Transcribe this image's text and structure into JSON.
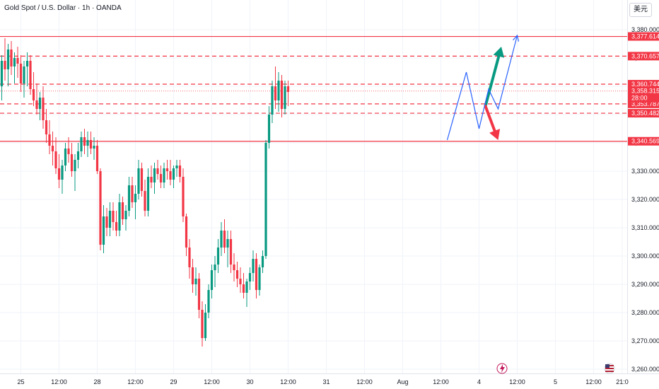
{
  "header": {
    "title": "Gold Spot / U.S. Dollar · 1h · OANDA",
    "currency_button": "美元"
  },
  "chart_data": {
    "type": "candlestick",
    "title": "Gold Spot / U.S. Dollar · 1h · OANDA",
    "y_ticks": [
      3380,
      3370,
      3360,
      3350,
      3340,
      3330,
      3320,
      3310,
      3300,
      3290,
      3280,
      3270,
      3260
    ],
    "y_tick_labels": [
      "3,380.000",
      "3,370.000",
      "3,360.000",
      "3,350.000",
      "3,340.000",
      "3,330.000",
      "3,320.000",
      "3,310.000",
      "3,300.000",
      "3,290.000",
      "3,280.000",
      "3,270.000",
      "3,260.000"
    ],
    "ylim": [
      3257,
      3384
    ],
    "x_ticks": [
      {
        "label": "25",
        "t": 6
      },
      {
        "label": "12:00",
        "t": 18
      },
      {
        "label": "28",
        "t": 30
      },
      {
        "label": "12:00",
        "t": 42
      },
      {
        "label": "29",
        "t": 54
      },
      {
        "label": "12:00",
        "t": 66
      },
      {
        "label": "30",
        "t": 78
      },
      {
        "label": "12:00",
        "t": 90
      },
      {
        "label": "31",
        "t": 102
      },
      {
        "label": "12:00",
        "t": 114
      },
      {
        "label": "Aug",
        "t": 126
      },
      {
        "label": "12:00",
        "t": 138
      },
      {
        "label": "4",
        "t": 150
      },
      {
        "label": "12:00",
        "t": 162
      },
      {
        "label": "5",
        "t": 174
      },
      {
        "label": "12:00",
        "t": 186
      },
      {
        "label": "21:0",
        "t": 195
      }
    ],
    "levels": [
      {
        "value": 3377.614,
        "label": "3,377.614",
        "style": "solid",
        "color": "#f23645"
      },
      {
        "value": 3370.657,
        "label": "3,370.657",
        "style": "dashed",
        "color": "#f23645"
      },
      {
        "value": 3360.744,
        "label": "3,360.744",
        "style": "dashed",
        "color": "#f23645"
      },
      {
        "value": 3353.787,
        "label": "3,353.787",
        "style": "dashed",
        "color": "#f23645"
      },
      {
        "value": 3350.482,
        "label": "3,350.482",
        "style": "dashed",
        "color": "#f23645"
      },
      {
        "value": 3340.569,
        "label": "3,340.569",
        "style": "solid",
        "color": "#f23645"
      }
    ],
    "current_price": {
      "value": 3358.315,
      "label": "3,358.315",
      "countdown": "28:00",
      "color": "#f23645"
    },
    "up_color": "#089981",
    "down_color": "#f23645",
    "candles": [
      [
        3360,
        3371,
        3355,
        3369
      ],
      [
        3369,
        3377,
        3362,
        3366
      ],
      [
        3366,
        3375,
        3360,
        3373
      ],
      [
        3373,
        3376,
        3364,
        3367
      ],
      [
        3367,
        3372,
        3361,
        3370
      ],
      [
        3370,
        3374,
        3363,
        3368
      ],
      [
        3368,
        3371,
        3358,
        3361
      ],
      [
        3361,
        3369,
        3356,
        3367
      ],
      [
        3367,
        3372,
        3360,
        3369
      ],
      [
        3369,
        3371,
        3357,
        3359
      ],
      [
        3359,
        3365,
        3353,
        3355
      ],
      [
        3355,
        3361,
        3350,
        3352
      ],
      [
        3352,
        3358,
        3348,
        3356
      ],
      [
        3356,
        3360,
        3345,
        3348
      ],
      [
        3348,
        3352,
        3340,
        3343
      ],
      [
        3343,
        3348,
        3336,
        3339
      ],
      [
        3339,
        3344,
        3332,
        3337
      ],
      [
        3337,
        3342,
        3329,
        3331
      ],
      [
        3331,
        3336,
        3324,
        3327
      ],
      [
        3327,
        3334,
        3322,
        3332
      ],
      [
        3332,
        3340,
        3330,
        3338
      ],
      [
        3338,
        3342,
        3333,
        3336
      ],
      [
        3336,
        3340,
        3328,
        3330
      ],
      [
        3330,
        3336,
        3323,
        3334
      ],
      [
        3334,
        3340,
        3331,
        3337
      ],
      [
        3337,
        3344,
        3335,
        3342
      ],
      [
        3342,
        3345,
        3336,
        3339
      ],
      [
        3339,
        3344,
        3335,
        3341
      ],
      [
        3341,
        3344,
        3336,
        3338
      ],
      [
        3338,
        3342,
        3334,
        3339
      ],
      [
        3339,
        3341,
        3329,
        3330
      ],
      [
        3330,
        3331,
        3302,
        3304
      ],
      [
        3304,
        3318,
        3301,
        3314
      ],
      [
        3314,
        3317,
        3307,
        3310
      ],
      [
        3310,
        3319,
        3307,
        3316
      ],
      [
        3316,
        3319,
        3309,
        3312
      ],
      [
        3312,
        3316,
        3307,
        3309
      ],
      [
        3309,
        3322,
        3307,
        3319
      ],
      [
        3319,
        3321,
        3311,
        3313
      ],
      [
        3313,
        3318,
        3309,
        3316
      ],
      [
        3316,
        3328,
        3314,
        3325
      ],
      [
        3325,
        3328,
        3317,
        3319
      ],
      [
        3319,
        3325,
        3313,
        3322
      ],
      [
        3322,
        3334,
        3320,
        3331
      ],
      [
        3331,
        3333,
        3321,
        3323
      ],
      [
        3323,
        3327,
        3314,
        3316
      ],
      [
        3316,
        3331,
        3314,
        3328
      ],
      [
        3328,
        3332,
        3324,
        3326
      ],
      [
        3326,
        3333,
        3322,
        3331
      ],
      [
        3331,
        3334,
        3327,
        3329
      ],
      [
        3329,
        3332,
        3324,
        3326
      ],
      [
        3326,
        3333,
        3324,
        3331
      ],
      [
        3331,
        3334,
        3327,
        3330
      ],
      [
        3330,
        3334,
        3325,
        3327
      ],
      [
        3327,
        3332,
        3324,
        3331
      ],
      [
        3331,
        3334,
        3328,
        3332
      ],
      [
        3332,
        3334,
        3326,
        3328
      ],
      [
        3328,
        3331,
        3312,
        3314
      ],
      [
        3314,
        3315,
        3300,
        3303
      ],
      [
        3303,
        3306,
        3292,
        3296
      ],
      [
        3296,
        3299,
        3287,
        3290
      ],
      [
        3290,
        3296,
        3286,
        3292
      ],
      [
        3292,
        3294,
        3278,
        3281
      ],
      [
        3281,
        3284,
        3268,
        3271
      ],
      [
        3271,
        3283,
        3270,
        3280
      ],
      [
        3280,
        3290,
        3278,
        3288
      ],
      [
        3288,
        3297,
        3285,
        3295
      ],
      [
        3295,
        3300,
        3289,
        3297
      ],
      [
        3297,
        3306,
        3294,
        3303
      ],
      [
        3303,
        3312,
        3300,
        3309
      ],
      [
        3309,
        3313,
        3301,
        3303
      ],
      [
        3303,
        3309,
        3296,
        3306
      ],
      [
        3306,
        3309,
        3294,
        3297
      ],
      [
        3297,
        3301,
        3291,
        3295
      ],
      [
        3295,
        3298,
        3289,
        3292
      ],
      [
        3292,
        3296,
        3287,
        3290
      ],
      [
        3290,
        3294,
        3285,
        3287
      ],
      [
        3287,
        3292,
        3282,
        3291
      ],
      [
        3291,
        3296,
        3288,
        3294
      ],
      [
        3294,
        3302,
        3291,
        3299
      ],
      [
        3299,
        3301,
        3285,
        3288
      ],
      [
        3288,
        3297,
        3286,
        3296
      ],
      [
        3296,
        3302,
        3294,
        3300
      ],
      [
        3300,
        3341,
        3299,
        3340
      ],
      [
        3340,
        3353,
        3338,
        3350
      ],
      [
        3350,
        3362,
        3347,
        3360
      ],
      [
        3360,
        3367,
        3352,
        3355
      ],
      [
        3355,
        3365,
        3351,
        3362
      ],
      [
        3362,
        3364,
        3349,
        3352
      ],
      [
        3352,
        3362,
        3350,
        3360
      ],
      [
        3360,
        3362,
        3353,
        3358
      ]
    ],
    "drawings": [
      {
        "type": "arrow",
        "color": "#089981",
        "from": {
          "t": 152,
          "v": 3353
        },
        "to": {
          "t": 157,
          "v": 3374
        }
      },
      {
        "type": "arrow",
        "color": "#f23645",
        "from": {
          "t": 152,
          "v": 3353
        },
        "to": {
          "t": 156,
          "v": 3341
        }
      },
      {
        "type": "path",
        "color": "#2962ff",
        "points": [
          {
            "t": 140,
            "v": 3341
          },
          {
            "t": 146,
            "v": 3365
          },
          {
            "t": 150,
            "v": 3345
          },
          {
            "t": 153,
            "v": 3359
          },
          {
            "t": 156,
            "v": 3352
          },
          {
            "t": 162,
            "v": 3378
          }
        ]
      }
    ]
  }
}
